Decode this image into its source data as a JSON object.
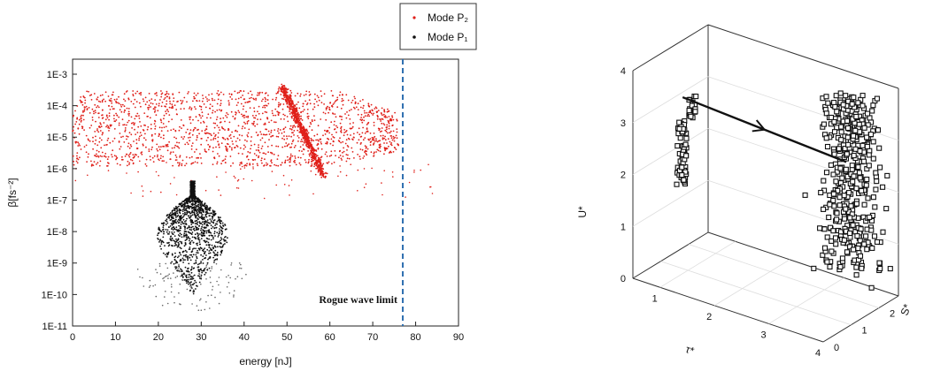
{
  "chart_data": [
    {
      "type": "scatter",
      "xlabel": "energy [nJ]",
      "ylabel": "β[fs⁻²]",
      "xlim": [
        0,
        90
      ],
      "ylim": [
        1e-11,
        0.003
      ],
      "yscale": "log",
      "x_ticks": [
        "0",
        "10",
        "20",
        "30",
        "40",
        "50",
        "60",
        "70",
        "80",
        "90"
      ],
      "y_ticks": [
        "1E-11",
        "1E-10",
        "1E-9",
        "1E-8",
        "1E-7",
        "1E-6",
        "1E-5",
        "1E-4",
        "1E-3"
      ],
      "legend": {
        "placement": "top-right",
        "entries": [
          "Mode P₂",
          "Mode P₁"
        ]
      },
      "series": [
        {
          "name": "Mode P₂",
          "color": "#e0201a",
          "clusters": [
            {
              "x_range": [
                0,
                75
              ],
              "y_range": [
                1e-06,
                0.0003
              ],
              "shape": "broad band"
            },
            {
              "x_range": [
                48,
                59
              ],
              "y_range": [
                5e-07,
                0.0004
              ],
              "shape": "diagonal streak"
            },
            {
              "x_range": [
                0,
                84
              ],
              "y_range": [
                1e-07,
                2e-06
              ],
              "shape": "sparse fringe"
            }
          ]
        },
        {
          "name": "Mode P₁",
          "color": "#111111",
          "clusters": [
            {
              "x_range": [
                20,
                40
              ],
              "y_range": [
                1e-10,
                4e-07
              ],
              "shape": "dense core near 28 nJ"
            },
            {
              "x_range": [
                18,
                41
              ],
              "y_range": [
                3e-11,
                1e-09
              ],
              "shape": "sparse fringe"
            }
          ]
        }
      ],
      "annotations": [
        {
          "text": "Rogue wave limit",
          "x": 77
        }
      ]
    },
    {
      "type": "scatter",
      "projection": "3d",
      "xlabel": "τ*",
      "ylabel": "S*",
      "zlabel": "U*",
      "xlim": [
        0.5,
        4
      ],
      "ylim": [
        0,
        2.7
      ],
      "zlim": [
        0,
        4
      ],
      "x_ticks": [
        "1",
        "2",
        "3",
        "4"
      ],
      "y_ticks": [
        "0",
        "1",
        "2"
      ],
      "z_ticks": [
        "0",
        "1",
        "2",
        "3",
        "4"
      ],
      "marker": "open square",
      "color": "#111111",
      "clusters": [
        {
          "tau": 0.8,
          "S": 1.2,
          "U_range": [
            1.5,
            2.8
          ]
        },
        {
          "tau": 3.5,
          "S": 2.0,
          "U_range": [
            0.5,
            3.9
          ]
        }
      ],
      "path": [
        {
          "tau": 0.8,
          "S": 1.2,
          "U": 3.2
        },
        {
          "tau": 3.4,
          "S": 2.0,
          "U": 2.6
        }
      ]
    }
  ]
}
